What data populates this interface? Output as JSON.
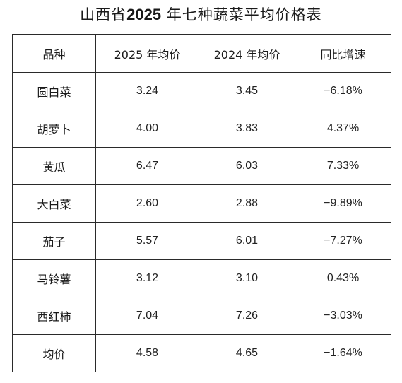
{
  "title": {
    "prefix": "山西省",
    "year": "2025",
    "suffix": "年七种蔬菜平均价格表"
  },
  "table": {
    "headers": [
      "品种",
      "2025 年均价",
      "2024 年均价",
      "同比增速"
    ],
    "rows": [
      {
        "name": "圆白菜",
        "p2025": "3.24",
        "p2024": "3.45",
        "yoy": "−6.18%"
      },
      {
        "name": "胡萝卜",
        "p2025": "4.00",
        "p2024": "3.83",
        "yoy": "4.37%"
      },
      {
        "name": "黄瓜",
        "p2025": "6.47",
        "p2024": "6.03",
        "yoy": "7.33%"
      },
      {
        "name": "大白菜",
        "p2025": "2.60",
        "p2024": "2.88",
        "yoy": "−9.89%"
      },
      {
        "name": "茄子",
        "p2025": "5.57",
        "p2024": "6.01",
        "yoy": "−7.27%"
      },
      {
        "name": "马铃薯",
        "p2025": "3.12",
        "p2024": "3.10",
        "yoy": "0.43%"
      },
      {
        "name": "西红柿",
        "p2025": "7.04",
        "p2024": "7.26",
        "yoy": "−3.03%"
      },
      {
        "name": "均价",
        "p2025": "4.58",
        "p2024": "4.65",
        "yoy": "−1.64%"
      }
    ]
  }
}
